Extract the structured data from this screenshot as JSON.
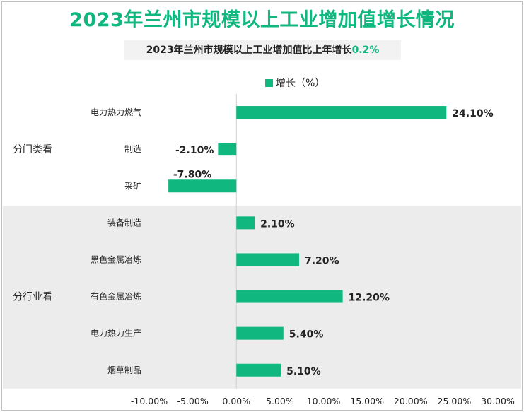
{
  "title": "2023年兰州市规模以上工业增加值增长情况",
  "subtitle": {
    "prefix": "2023年兰州市规模以上工业增加值比上年增长",
    "highlight": "0.2%"
  },
  "colors": {
    "bar": "#10b77f",
    "title": "#10b77f",
    "band": "#ececec",
    "text": "#222222"
  },
  "chart_data": {
    "type": "bar",
    "orientation": "horizontal",
    "legend": {
      "label": "增长（%）",
      "position": "top"
    },
    "groups": [
      {
        "label": "分门类看",
        "categories": [
          "电力热力燃气",
          "制造",
          "采矿"
        ],
        "shaded": false
      },
      {
        "label": "分行业看",
        "categories": [
          "装备制造",
          "黑色金属冶炼",
          "有色金属冶炼",
          "电力热力生产",
          "烟草制品"
        ],
        "shaded": true
      }
    ],
    "categories": [
      "电力热力燃气",
      "制造",
      "采矿",
      "装备制造",
      "黑色金属冶炼",
      "有色金属冶炼",
      "电力热力生产",
      "烟草制品"
    ],
    "series": [
      {
        "name": "增长（%）",
        "values": [
          24.1,
          -2.1,
          -7.8,
          2.1,
          7.2,
          12.2,
          5.4,
          5.1
        ],
        "labels": [
          "24.10%",
          "-2.10%",
          "-7.80%",
          "2.10%",
          "7.20%",
          "12.20%",
          "5.40%",
          "5.10%"
        ]
      }
    ],
    "xlim": [
      -10,
      30
    ],
    "xticks": [
      -10,
      -5,
      0,
      5,
      10,
      15,
      20,
      25,
      30
    ],
    "xtick_labels": [
      "-10.00%",
      "-5.00%",
      "0.00%",
      "5.00%",
      "10.00%",
      "15.00%",
      "20.00%",
      "25.00%",
      "30.00%"
    ]
  }
}
